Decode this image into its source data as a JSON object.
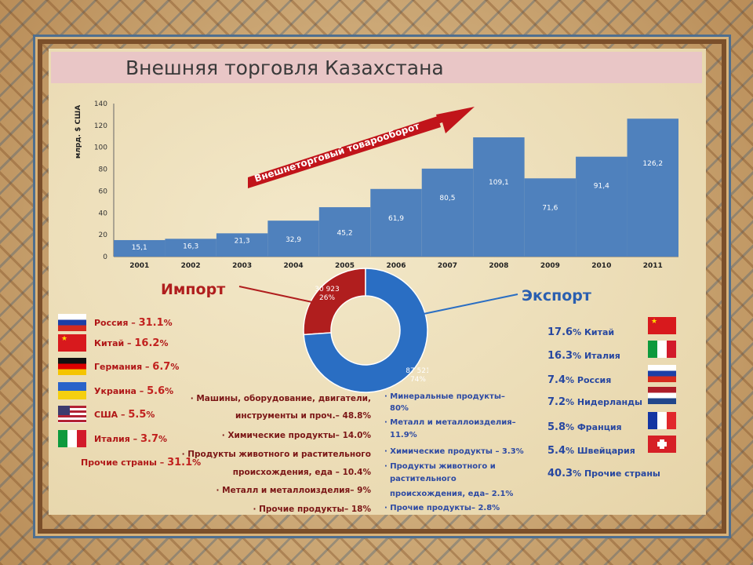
{
  "title": "Внешняя торговля Казахстана",
  "chart_data": [
    {
      "type": "bar",
      "ylabel": "млрд. $ США",
      "ylim": [
        0,
        140
      ],
      "yticks": [
        0,
        20,
        40,
        60,
        80,
        100,
        120,
        140
      ],
      "categories": [
        "2001",
        "2002",
        "2003",
        "2004",
        "2005",
        "2006",
        "2007",
        "2008",
        "2009",
        "2010",
        "2011"
      ],
      "values": [
        15.1,
        16.3,
        21.3,
        32.9,
        45.2,
        61.9,
        80.5,
        109.1,
        71.6,
        91.4,
        126.2
      ],
      "value_labels": [
        "15,1",
        "16,3",
        "21,3",
        "32,9",
        "45,2",
        "61,9",
        "80,5",
        "109,1",
        "71,6",
        "91,4",
        "126,2"
      ],
      "color": "#4f81bd",
      "annotation": "Внешнеторговый товарооборот",
      "grid": false
    },
    {
      "type": "pie",
      "labels": [
        "Импорт",
        "Экспорт"
      ],
      "values": [
        30923,
        87521
      ],
      "value_labels": [
        "30 923",
        "87 521"
      ],
      "percent_labels": [
        "26%",
        "74%"
      ],
      "colors": [
        "#b01e1e",
        "#2a6ec3"
      ]
    }
  ],
  "import_countries": [
    {
      "name": "Россия – ",
      "pct": "31.1",
      "unit": "%",
      "flag": "russia"
    },
    {
      "name": "Китай – ",
      "pct": "16.2",
      "unit": "%",
      "flag": "china"
    },
    {
      "name": "Германия – ",
      "pct": "6.7",
      "unit": "%",
      "flag": "germany"
    },
    {
      "name": "Украина – ",
      "pct": "5.6",
      "unit": "%",
      "flag": "ukraine"
    },
    {
      "name": "США – ",
      "pct": "5.5",
      "unit": "%",
      "flag": "usa"
    },
    {
      "name": "Италия – ",
      "pct": "3.7",
      "unit": "%",
      "flag": "italy"
    },
    {
      "name": "Прочие страны – ",
      "pct": "31.1",
      "unit": "%",
      "flag": ""
    }
  ],
  "export_countries": [
    {
      "pct": "17.6",
      "unit": "% ",
      "name": "Китай",
      "flag": "china"
    },
    {
      "pct": "16.3",
      "unit": "% ",
      "name": "Италия",
      "flag": "italy"
    },
    {
      "pct": "7.4",
      "unit": "% ",
      "name": "Россия",
      "flag": "russia"
    },
    {
      "pct": "7.2",
      "unit": "% ",
      "name": "Нидерланды",
      "flag": "netherlands"
    },
    {
      "pct": "5.8",
      "unit": "% ",
      "name": "Франция",
      "flag": "france"
    },
    {
      "pct": "5.4",
      "unit": "% ",
      "name": "Швейцария",
      "flag": "switzerland"
    },
    {
      "pct": "40.3",
      "unit": "% ",
      "name": "Прочие страны",
      "flag": ""
    }
  ],
  "import_goods": [
    "· Машины, оборудование, двигатели,",
    "инструменты и проч.– 48.8%",
    "· Химические продукты– 14.0%",
    "· Продукты животного и растительного",
    "происхождения, еда – 10.4%",
    "· Металл и металлоизделия– 9%",
    "· Прочие продукты– 18%"
  ],
  "export_goods": [
    "· Минеральные продукты–",
    "80%",
    "· Металл и металлоизделия–",
    "11.9%",
    "· Химические продукты – 3.3%",
    "· Продукты животного и",
    "растительного",
    "происхождения, еда– 2.1%",
    "· Прочие продукты– 2.8%"
  ],
  "colors": {
    "import": "#b01e1e",
    "export": "#2a6ec3",
    "bar": "#4f81bd"
  }
}
